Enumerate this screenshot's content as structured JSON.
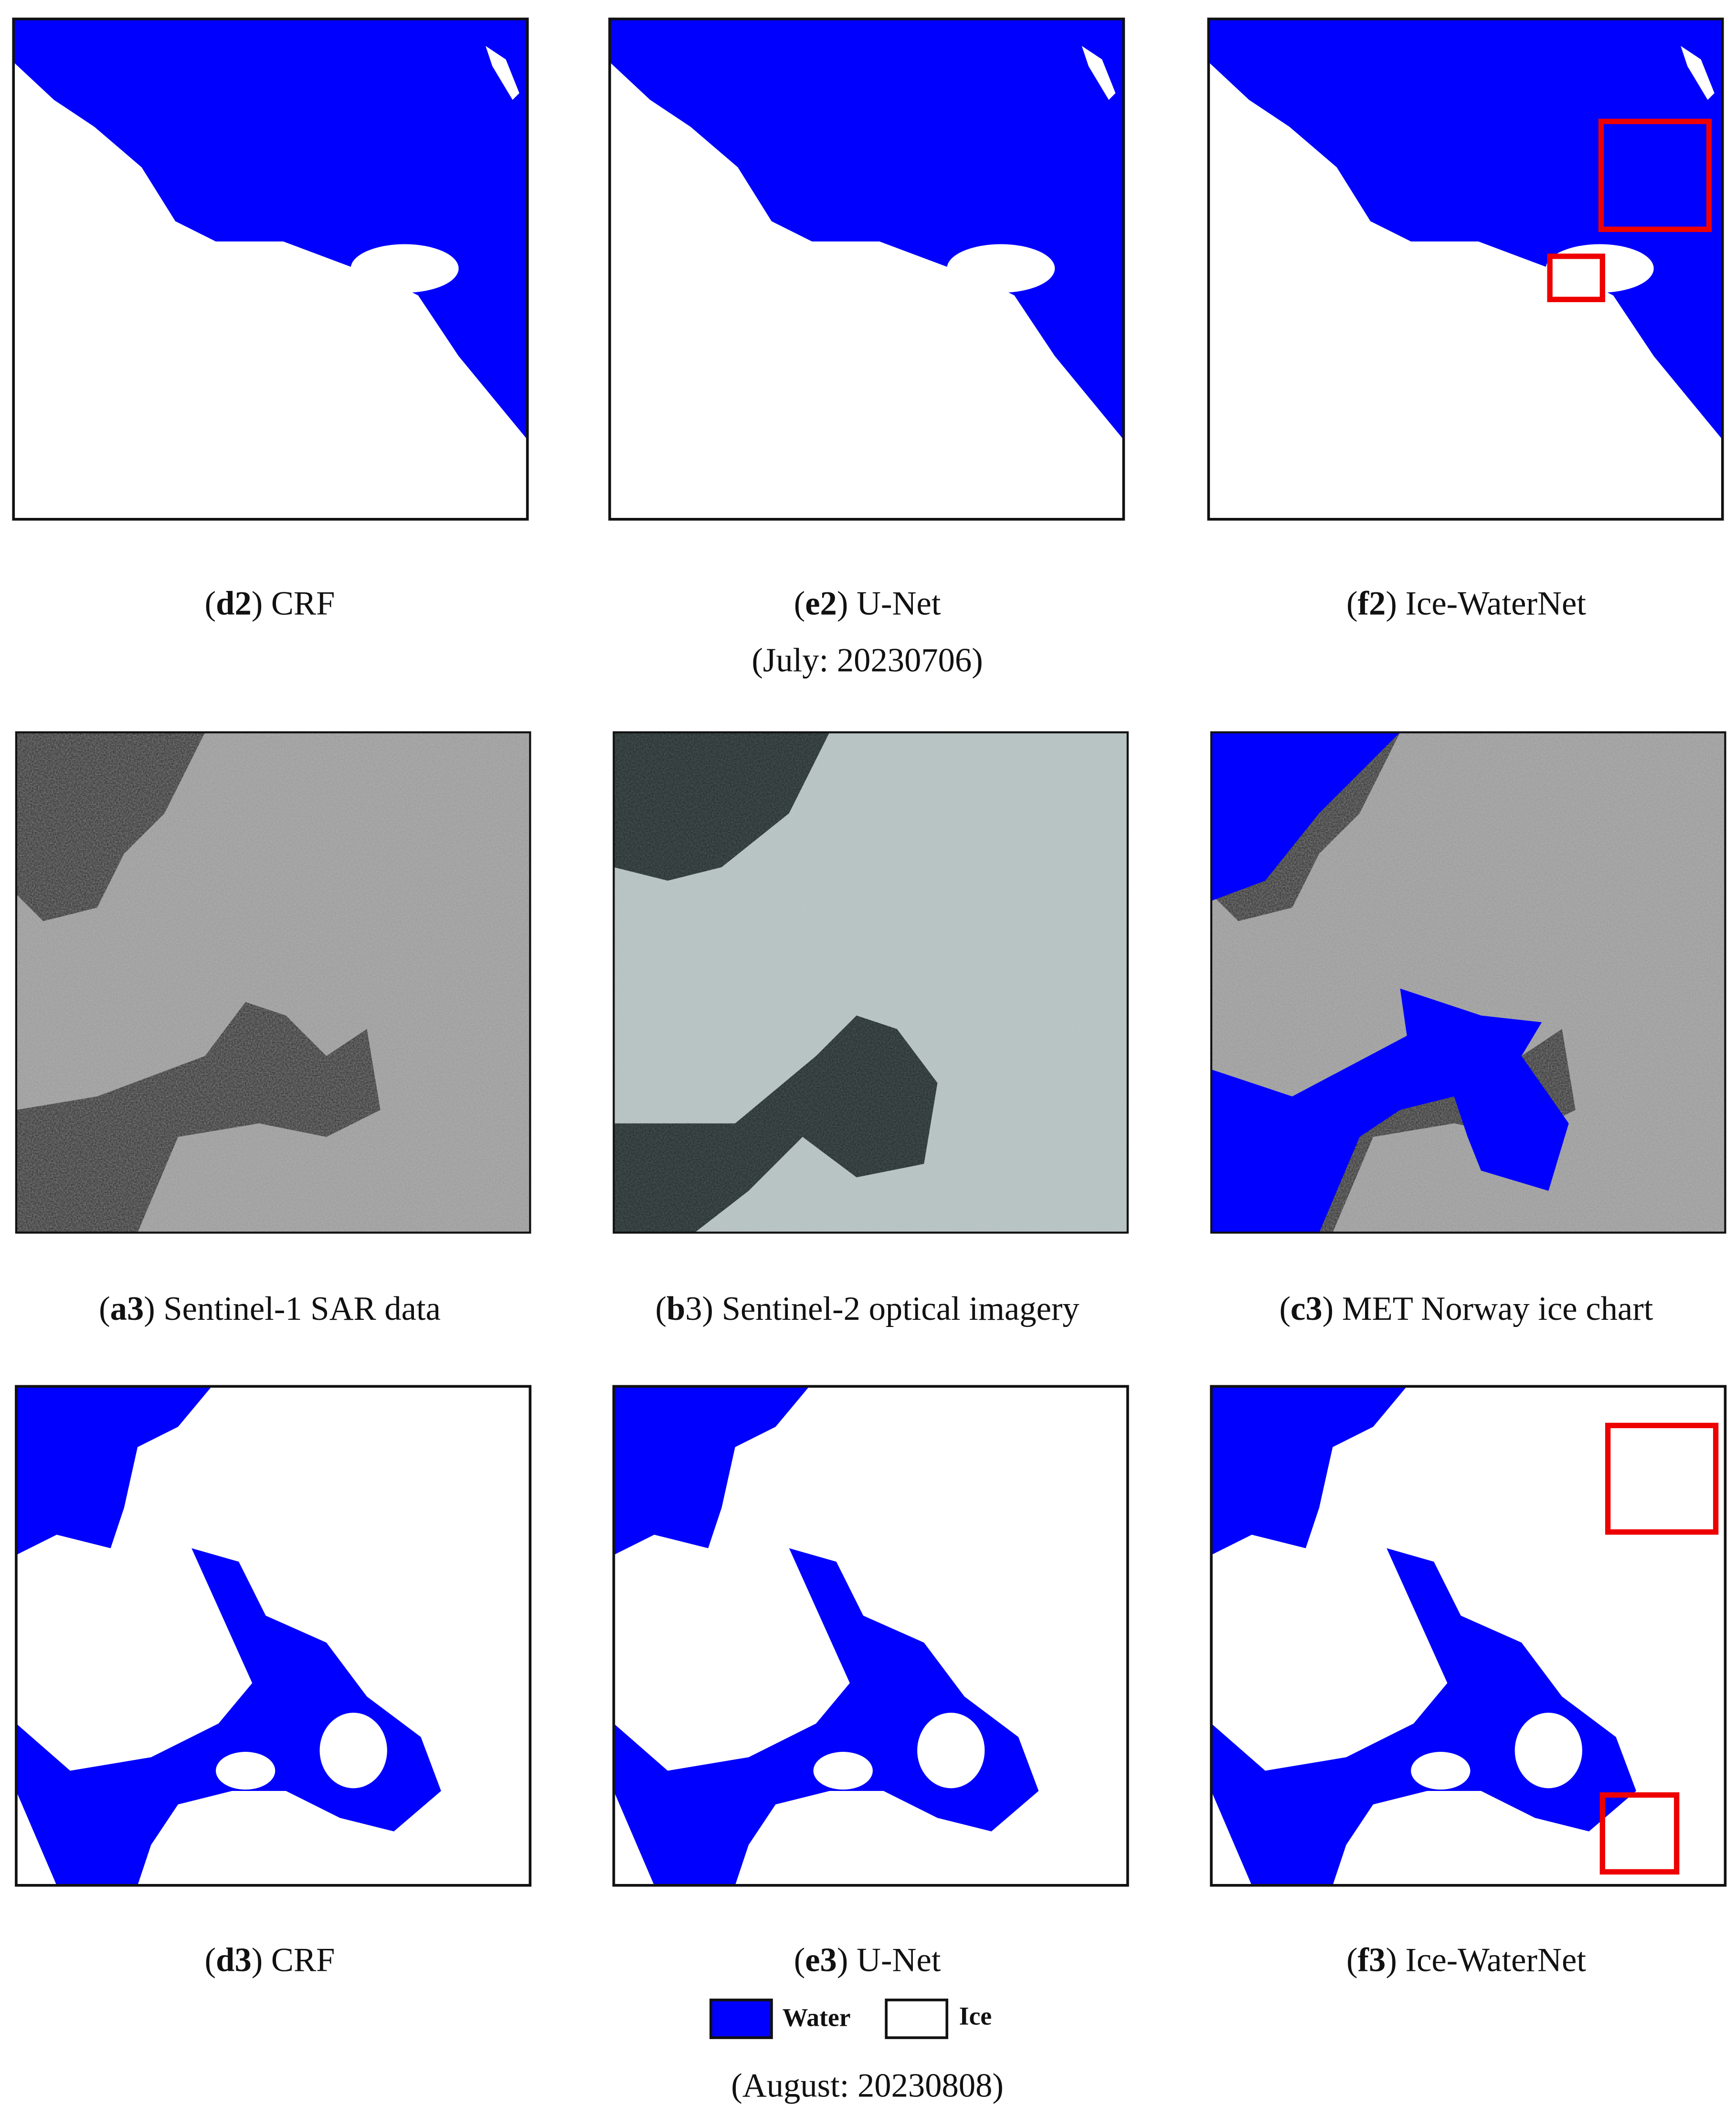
{
  "panels": [
    {
      "caption": [
        {
          "text": "("
        },
        {
          "text": "d2",
          "bold": true
        },
        {
          "text": ") CRF"
        }
      ]
    },
    {
      "caption": [
        {
          "text": "("
        },
        {
          "text": "e2",
          "bold": true
        },
        {
          "text": ") U-Net"
        }
      ]
    },
    {
      "caption": [
        {
          "text": "("
        },
        {
          "text": "f2",
          "bold": true
        },
        {
          "text": ") Ice-WaterNet"
        }
      ]
    },
    {
      "caption": [
        {
          "text": "("
        },
        {
          "text": "a3",
          "bold": true
        },
        {
          "text": ") Sentinel-1 SAR data"
        }
      ]
    },
    {
      "caption": [
        {
          "text": "("
        },
        {
          "text": "b",
          "bold": true
        },
        {
          "text": "3) Sentinel-2 optical imagery"
        }
      ]
    },
    {
      "caption": [
        {
          "text": "("
        },
        {
          "text": "c3",
          "bold": true
        },
        {
          "text": ") MET Norway ice chart"
        }
      ]
    },
    {
      "caption": [
        {
          "text": "("
        },
        {
          "text": "d3",
          "bold": true
        },
        {
          "text": ") CRF"
        }
      ]
    },
    {
      "caption": [
        {
          "text": "("
        },
        {
          "text": "e3",
          "bold": true
        },
        {
          "text": ") U-Net"
        }
      ]
    },
    {
      "caption": [
        {
          "text": "("
        },
        {
          "text": "f3",
          "bold": true
        },
        {
          "text": ") Ice-WaterNet"
        }
      ]
    }
  ],
  "groups": [
    "(July: 20230706)",
    "(August: 20230808)"
  ],
  "legend": {
    "water": "Water",
    "ice": "Ice"
  }
}
